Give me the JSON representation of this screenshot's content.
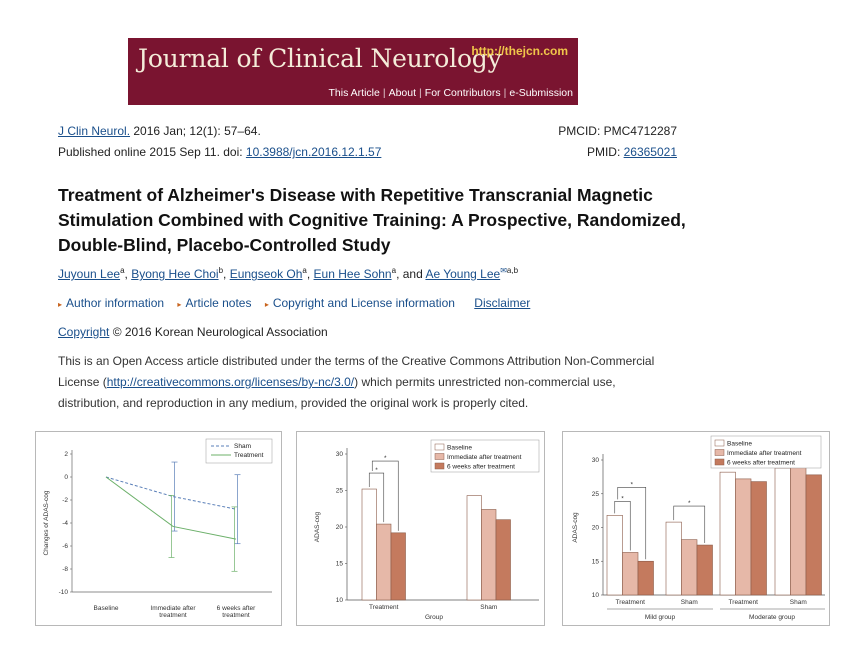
{
  "banner": {
    "journal_name": "Journal of Clinical Neurology",
    "url": "http://thejcn.com",
    "nav": [
      "This Article",
      "About",
      "For Contributors",
      "e-Submission"
    ]
  },
  "citation": {
    "journal_abbrev": "J Clin Neurol.",
    "issue": " 2016 Jan; 12(1): 57–64.",
    "published_prefix": "Published online 2015 Sep 11. doi: ",
    "doi": "10.3988/jcn.2016.12.1.57",
    "pmcid": "PMCID: PMC4712287",
    "pmid_prefix": "PMID: ",
    "pmid": "26365021"
  },
  "article": {
    "title": "Treatment of Alzheimer's Disease with Repetitive Transcranial Magnetic Stimulation Combined with Cognitive Training: A Prospective, Randomized, Double-Blind, Placebo-Controlled Study"
  },
  "authors": [
    {
      "name": "Juyoun Lee",
      "sup": "a"
    },
    {
      "name": "Byong Hee Choi",
      "sup": "b"
    },
    {
      "name": "Eungseok Oh",
      "sup": "a"
    },
    {
      "name": "Eun Hee Sohn",
      "sup": "a"
    },
    {
      "name": "Ae Young Lee",
      "sup": "a,b"
    }
  ],
  "info_links": {
    "author_info": "Author information",
    "article_notes": "Article notes",
    "copyright_license": "Copyright and License information",
    "disclaimer": "Disclaimer"
  },
  "copyright": {
    "link": "Copyright",
    "text": " © 2016 Korean Neurological Association"
  },
  "license": {
    "part1": "This is an Open Access article distributed under the terms of the Creative Commons Attribution Non-Commercial License (",
    "url": "http://creativecommons.org/licenses/by-nc/3.0/",
    "part2": ") which permits unrestricted non-commercial use, distribution, and reproduction in any medium, provided the original work is properly cited."
  },
  "colors": {
    "banner": "#7a1430",
    "baseline": "#ffffff",
    "immediate": "#e6b8a8",
    "six_weeks": "#c47a5e",
    "sham_line": "#5a7fb8",
    "treatment_line": "#6cb06a"
  },
  "chart_data": [
    {
      "type": "line",
      "categories": [
        "Baseline",
        "Immediate after treatment",
        "6 weeks after treatment"
      ],
      "series": [
        {
          "name": "Sham",
          "values": [
            0,
            -1.7,
            -2.8
          ],
          "err": [
            0,
            3.0,
            3.0
          ],
          "style": "dashed"
        },
        {
          "name": "Treatment",
          "values": [
            0,
            -4.3,
            -5.4
          ],
          "err": [
            0,
            2.7,
            2.8
          ],
          "style": "solid"
        }
      ],
      "ylabel": "Changes of ADAS-cog",
      "yticks": [
        "2",
        "0",
        "-2",
        "-4",
        "-6",
        "-8",
        "-10"
      ],
      "ylim": [
        -10,
        2
      ],
      "legend": "top-right"
    },
    {
      "type": "bar",
      "categories": [
        "Treatment",
        "Sham"
      ],
      "series": [
        {
          "name": "Baseline",
          "values": [
            25.2,
            24.3
          ]
        },
        {
          "name": "Immediate after treatment",
          "values": [
            20.4,
            22.4
          ]
        },
        {
          "name": "6 weeks after treatment",
          "values": [
            19.2,
            21.0
          ]
        }
      ],
      "xlabel": "Group",
      "ylabel": "ADAS-cog",
      "yticks": [
        "30",
        "25",
        "20",
        "15",
        "10"
      ],
      "ylim": [
        10,
        30
      ],
      "significance": "*",
      "legend": "top-right"
    },
    {
      "type": "bar",
      "categories": [
        "Treatment",
        "Sham",
        "Treatment",
        "Sham"
      ],
      "groups": [
        "Mild group",
        "Moderate group"
      ],
      "series": [
        {
          "name": "Baseline",
          "values": [
            21.8,
            20.8,
            28.2,
            28.8
          ]
        },
        {
          "name": "Immediate after treatment",
          "values": [
            16.3,
            18.2,
            27.2,
            29.8
          ]
        },
        {
          "name": "6 weeks after treatment",
          "values": [
            15.0,
            17.4,
            26.8,
            27.8
          ]
        }
      ],
      "ylabel": "ADAS-cog",
      "yticks": [
        "30",
        "25",
        "20",
        "15",
        "10"
      ],
      "ylim": [
        10,
        30
      ],
      "significance": "*",
      "legend": "top-right"
    }
  ]
}
